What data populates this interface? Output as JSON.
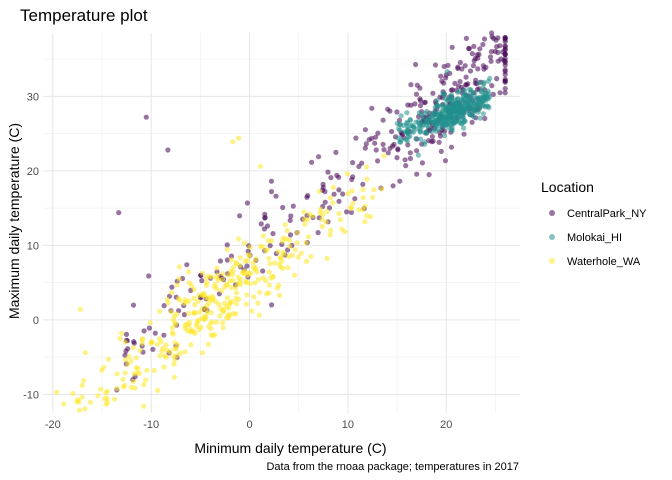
{
  "chart_data": {
    "type": "scatter",
    "title": "Temperature plot",
    "xlabel": "Minimum daily temperature (C)",
    "ylabel": "Maximum daily temperature (C)",
    "caption": "Data from the rnoaa package; temperatures in 2017",
    "xlim": [
      -21,
      27.5
    ],
    "ylim": [
      -12.5,
      38.5
    ],
    "x_ticks": [
      -20,
      -10,
      0,
      10,
      20
    ],
    "y_ticks": [
      -10,
      0,
      10,
      20,
      30
    ],
    "grid": true,
    "legend": {
      "title": "Location",
      "position": "right"
    },
    "series": [
      {
        "name": "CentralPark_NY",
        "color": "#440154",
        "generator": {
          "n": 365,
          "xmin": -13,
          "xmax": 26,
          "slope": 1.02,
          "intercept": 9.2,
          "noise": 3.2,
          "x_mode": 22
        },
        "points": [
          [
            -13.3,
            14.4
          ],
          [
            -13.5,
            -9.4
          ],
          [
            22.8,
            36.7
          ],
          [
            26,
            35.6
          ],
          [
            -10.5,
            27.2
          ],
          [
            -8.3,
            22.8
          ]
        ]
      },
      {
        "name": "Molokai_HI",
        "color": "#21908C",
        "generator": {
          "n": 365,
          "xmin": 15,
          "xmax": 24.5,
          "slope": 0.55,
          "intercept": 16.5,
          "noise": 1.2,
          "x_mode": 21
        },
        "points": [
          [
            15.6,
            26.1
          ],
          [
            16,
            27.8
          ],
          [
            20.1,
            33.3
          ],
          [
            17.8,
            23.9
          ],
          [
            21,
            26.7
          ]
        ]
      },
      {
        "name": "Waterhole_WA",
        "color": "#FDE725",
        "generator": {
          "n": 365,
          "xmin": -18,
          "xmax": 14,
          "slope": 1.0,
          "intercept": 5.5,
          "noise": 2.6,
          "x_mode": -3
        },
        "points": [
          [
            -19.6,
            -9.7
          ],
          [
            -18.9,
            -11.3
          ],
          [
            -17.2,
            1.4
          ],
          [
            -16.7,
            -4.4
          ],
          [
            -1.7,
            23.9
          ],
          [
            -1.1,
            24.4
          ],
          [
            1.1,
            20.6
          ]
        ]
      }
    ]
  }
}
